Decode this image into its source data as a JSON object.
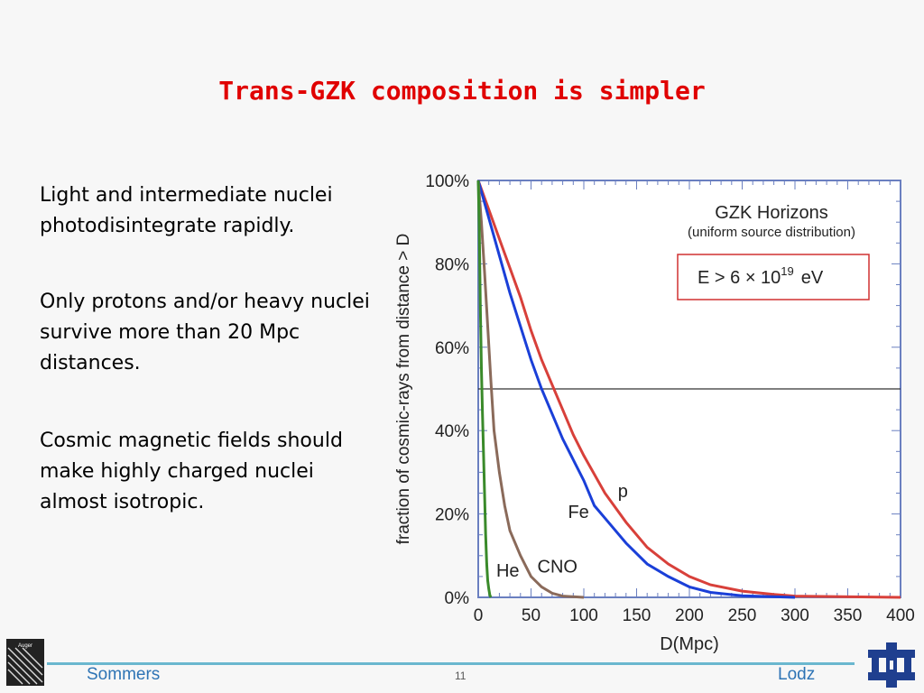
{
  "slide": {
    "title": "Trans-GZK composition is simpler",
    "bullets": [
      "Light and intermediate nuclei photodisintegrate rapidly.",
      "Only protons and/or heavy nuclei survive more than 20 Mpc distances.",
      "Cosmic magnetic fields should make highly charged nuclei almost isotropic."
    ]
  },
  "footer": {
    "left": "Sommers",
    "center": "11",
    "right": "Lodz",
    "logo_left_text": "Auger"
  },
  "colors": {
    "title": "#e00000",
    "footer_text": "#2e74b5",
    "footer_line": "#6ab7cf",
    "p": "#d8403a",
    "fe": "#1a3fd8",
    "cno": "#8a6a5a",
    "he": "#3a8a2a",
    "logo_right": "#1f3f8f"
  },
  "chart_data": {
    "type": "line",
    "title": "GZK Horizons",
    "subtitle": "(uniform source distribution)",
    "annotation_base": "E > 6 × 10",
    "annotation_exp": "19",
    "annotation_unit": "eV",
    "xlabel": "D(Mpc)",
    "ylabel": "fraction of cosmic-rays from distance > D",
    "xlim": [
      0,
      400
    ],
    "ylim": [
      0,
      100
    ],
    "xticks": [
      "0",
      "50",
      "100",
      "150",
      "200",
      "250",
      "300",
      "350",
      "400"
    ],
    "yticks": [
      "0%",
      "20%",
      "40%",
      "60%",
      "80%",
      "100%"
    ],
    "reference_line_y": 50,
    "series": [
      {
        "name": "p",
        "color": "#d8403a",
        "label_at": [
          137,
          24
        ],
        "points": [
          [
            0,
            100
          ],
          [
            10,
            93
          ],
          [
            20,
            86
          ],
          [
            30,
            79
          ],
          [
            40,
            72
          ],
          [
            50,
            64
          ],
          [
            60,
            57
          ],
          [
            70,
            51
          ],
          [
            80,
            45
          ],
          [
            90,
            39
          ],
          [
            100,
            34
          ],
          [
            120,
            25
          ],
          [
            140,
            18
          ],
          [
            160,
            12
          ],
          [
            180,
            8
          ],
          [
            200,
            5
          ],
          [
            220,
            3
          ],
          [
            250,
            1.5
          ],
          [
            280,
            0.7
          ],
          [
            300,
            0.3
          ],
          [
            400,
            0
          ]
        ]
      },
      {
        "name": "Fe",
        "color": "#1a3fd8",
        "label_at": [
          95,
          19
        ],
        "points": [
          [
            0,
            100
          ],
          [
            10,
            91
          ],
          [
            20,
            82
          ],
          [
            30,
            73
          ],
          [
            40,
            65
          ],
          [
            50,
            57
          ],
          [
            60,
            50
          ],
          [
            70,
            44
          ],
          [
            80,
            38
          ],
          [
            90,
            33
          ],
          [
            100,
            28
          ],
          [
            110,
            22
          ],
          [
            120,
            19
          ],
          [
            140,
            13
          ],
          [
            160,
            8
          ],
          [
            180,
            5
          ],
          [
            200,
            2.5
          ],
          [
            220,
            1.2
          ],
          [
            250,
            0.4
          ],
          [
            300,
            0
          ]
        ]
      },
      {
        "name": "CNO",
        "color": "#8a6a5a",
        "label_at": [
          75,
          6
        ],
        "points": [
          [
            0,
            100
          ],
          [
            3,
            90
          ],
          [
            6,
            78
          ],
          [
            9,
            65
          ],
          [
            12,
            52
          ],
          [
            15,
            40
          ],
          [
            20,
            30
          ],
          [
            25,
            22
          ],
          [
            30,
            16
          ],
          [
            40,
            10
          ],
          [
            50,
            5
          ],
          [
            60,
            2.5
          ],
          [
            70,
            1
          ],
          [
            80,
            0.3
          ],
          [
            100,
            0
          ]
        ]
      },
      {
        "name": "He",
        "color": "#3a8a2a",
        "label_at": [
          28,
          5
        ],
        "points": [
          [
            0,
            100
          ],
          [
            1,
            88
          ],
          [
            2,
            70
          ],
          [
            3,
            55
          ],
          [
            4,
            44
          ],
          [
            5,
            35
          ],
          [
            6,
            25
          ],
          [
            7,
            15
          ],
          [
            8,
            8
          ],
          [
            9,
            4
          ],
          [
            10,
            2
          ],
          [
            11,
            0.5
          ],
          [
            12,
            0
          ]
        ]
      }
    ]
  }
}
